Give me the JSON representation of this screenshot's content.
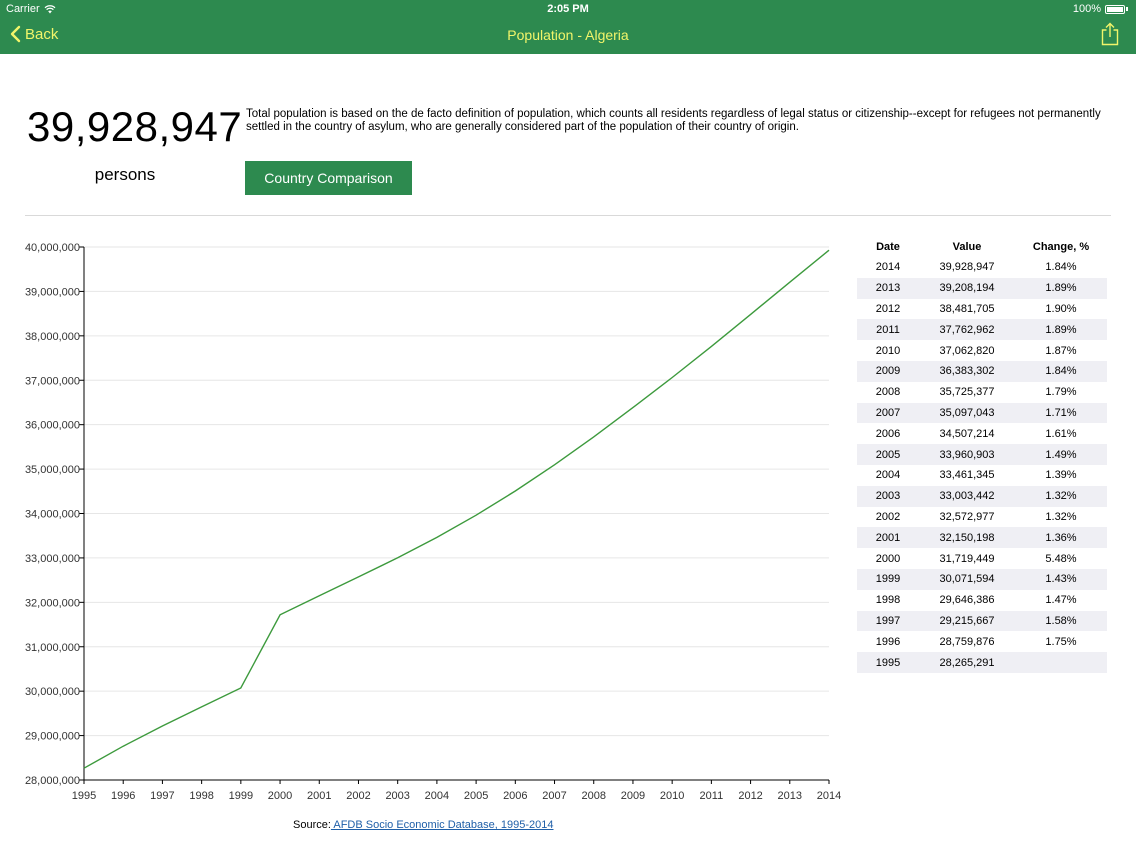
{
  "status_bar": {
    "carrier": "Carrier",
    "time": "2:05 PM",
    "battery": "100%"
  },
  "nav": {
    "back_label": "Back",
    "title": "Population - Algeria"
  },
  "summary": {
    "value": "39,928,947",
    "unit": "persons",
    "description": "Total population is based on the de facto definition of population, which counts all residents regardless of legal status or citizenship--except for refugees not permanently settled in the country of asylum, who are generally considered part of the population of their country of origin.",
    "compare_button": "Country Comparison"
  },
  "chart_data": {
    "type": "line",
    "x": [
      1995,
      1996,
      1997,
      1998,
      1999,
      2000,
      2001,
      2002,
      2003,
      2004,
      2005,
      2006,
      2007,
      2008,
      2009,
      2010,
      2011,
      2012,
      2013,
      2014
    ],
    "values": [
      28265291,
      28759876,
      29215667,
      29646386,
      30071594,
      31719449,
      32150198,
      32572977,
      33003442,
      33461345,
      33960903,
      34507214,
      35097043,
      35725377,
      36383302,
      37062820,
      37762962,
      38481705,
      39208194,
      39928947
    ],
    "y_ticks": [
      "28,000,000",
      "29,000,000",
      "30,000,000",
      "31,000,000",
      "32,000,000",
      "33,000,000",
      "34,000,000",
      "35,000,000",
      "36,000,000",
      "37,000,000",
      "38,000,000",
      "39,000,000",
      "40,000,000"
    ],
    "ylim": [
      28000000,
      40000000
    ],
    "xlim": [
      1995,
      2014
    ],
    "grid": true,
    "line_color": "#3d9a3d"
  },
  "source": {
    "prefix": "Source:",
    "link_text": " AFDB Socio Economic Database, 1995-2014"
  },
  "table": {
    "headers": [
      "Date",
      "Value",
      "Change, %"
    ],
    "rows": [
      [
        "2014",
        "39,928,947",
        "1.84%"
      ],
      [
        "2013",
        "39,208,194",
        "1.89%"
      ],
      [
        "2012",
        "38,481,705",
        "1.90%"
      ],
      [
        "2011",
        "37,762,962",
        "1.89%"
      ],
      [
        "2010",
        "37,062,820",
        "1.87%"
      ],
      [
        "2009",
        "36,383,302",
        "1.84%"
      ],
      [
        "2008",
        "35,725,377",
        "1.79%"
      ],
      [
        "2007",
        "35,097,043",
        "1.71%"
      ],
      [
        "2006",
        "34,507,214",
        "1.61%"
      ],
      [
        "2005",
        "33,960,903",
        "1.49%"
      ],
      [
        "2004",
        "33,461,345",
        "1.39%"
      ],
      [
        "2003",
        "33,003,442",
        "1.32%"
      ],
      [
        "2002",
        "32,572,977",
        "1.32%"
      ],
      [
        "2001",
        "32,150,198",
        "1.36%"
      ],
      [
        "2000",
        "31,719,449",
        "5.48%"
      ],
      [
        "1999",
        "30,071,594",
        "1.43%"
      ],
      [
        "1998",
        "29,646,386",
        "1.47%"
      ],
      [
        "1997",
        "29,215,667",
        "1.58%"
      ],
      [
        "1996",
        "28,759,876",
        "1.75%"
      ],
      [
        "1995",
        "28,265,291",
        ""
      ]
    ]
  }
}
